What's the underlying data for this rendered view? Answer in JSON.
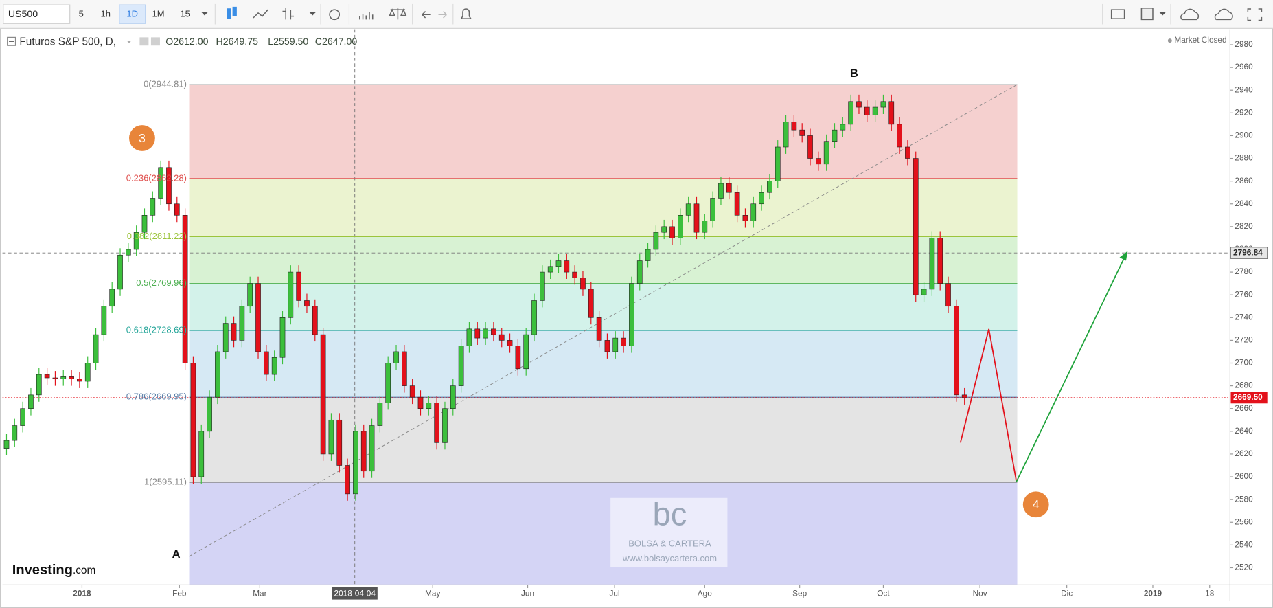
{
  "toolbar": {
    "symbol": "US500",
    "intervals": [
      "5",
      "1h",
      "1D",
      "1M",
      "15"
    ]
  },
  "chart_data": {
    "type": "candlestick",
    "title": "Futuros S&P 500, D,",
    "header_values": [
      "O2612.00",
      "H2649.75",
      "L2559.50",
      "C2647.00"
    ],
    "status": "Market Closed",
    "open": [
      2625,
      2632,
      2645,
      2660,
      2672,
      2690,
      2687,
      2686,
      2688,
      2686,
      2684,
      2700,
      2725,
      2750,
      2765,
      2795,
      2800,
      2815,
      2830,
      2845,
      2872,
      2840,
      2830,
      2700,
      2600,
      2640,
      2670,
      2710,
      2735,
      2720,
      2750,
      2770,
      2710,
      2690,
      2705,
      2740,
      2780,
      2755,
      2750,
      2725,
      2620,
      2650,
      2610,
      2585,
      2640,
      2605,
      2645,
      2665,
      2700,
      2710,
      2680,
      2670,
      2660,
      2665,
      2630,
      2660,
      2680,
      2715,
      2730,
      2722,
      2730,
      2725,
      2720,
      2715,
      2695,
      2725,
      2755,
      2780,
      2785,
      2790,
      2780,
      2775,
      2765,
      2740,
      2720,
      2710,
      2722,
      2715,
      2770,
      2790,
      2800,
      2815,
      2820,
      2810,
      2830,
      2840,
      2815,
      2825,
      2845,
      2858,
      2850,
      2830,
      2825,
      2840,
      2850,
      2860,
      2890,
      2912,
      2905,
      2900,
      2880,
      2875,
      2895,
      2905,
      2910,
      2930,
      2925,
      2918,
      2925,
      2930,
      2910,
      2890,
      2880,
      2760,
      2765,
      2810,
      2770,
      2750,
      2672
    ],
    "high": [
      2638,
      2651,
      2666,
      2678,
      2696,
      2696,
      2693,
      2694,
      2694,
      2692,
      2706,
      2731,
      2756,
      2771,
      2801,
      2806,
      2821,
      2836,
      2851,
      2878,
      2878,
      2846,
      2836,
      2706,
      2646,
      2676,
      2716,
      2741,
      2741,
      2756,
      2776,
      2776,
      2716,
      2711,
      2746,
      2786,
      2786,
      2761,
      2756,
      2731,
      2656,
      2656,
      2616,
      2646,
      2646,
      2651,
      2671,
      2706,
      2716,
      2716,
      2686,
      2676,
      2671,
      2671,
      2666,
      2686,
      2721,
      2736,
      2736,
      2736,
      2736,
      2731,
      2726,
      2721,
      2731,
      2761,
      2786,
      2791,
      2796,
      2796,
      2786,
      2781,
      2771,
      2746,
      2726,
      2728,
      2728,
      2776,
      2796,
      2806,
      2821,
      2826,
      2826,
      2836,
      2846,
      2846,
      2831,
      2851,
      2864,
      2864,
      2856,
      2836,
      2846,
      2856,
      2866,
      2896,
      2918,
      2918,
      2911,
      2906,
      2886,
      2901,
      2911,
      2916,
      2936,
      2936,
      2931,
      2931,
      2936,
      2936,
      2916,
      2896,
      2886,
      2771,
      2816,
      2816,
      2776,
      2756,
      2678
    ],
    "low": [
      2619,
      2626,
      2639,
      2654,
      2666,
      2681,
      2680,
      2680,
      2680,
      2678,
      2678,
      2694,
      2719,
      2744,
      2759,
      2789,
      2794,
      2809,
      2824,
      2839,
      2834,
      2824,
      2694,
      2594,
      2594,
      2634,
      2664,
      2704,
      2714,
      2714,
      2744,
      2704,
      2684,
      2684,
      2699,
      2734,
      2749,
      2744,
      2719,
      2614,
      2614,
      2604,
      2579,
      2579,
      2599,
      2599,
      2639,
      2659,
      2694,
      2674,
      2664,
      2654,
      2654,
      2624,
      2624,
      2654,
      2674,
      2709,
      2716,
      2716,
      2719,
      2714,
      2709,
      2689,
      2689,
      2719,
      2749,
      2774,
      2779,
      2774,
      2769,
      2759,
      2734,
      2714,
      2704,
      2704,
      2709,
      2709,
      2764,
      2784,
      2794,
      2809,
      2804,
      2804,
      2824,
      2809,
      2809,
      2819,
      2839,
      2844,
      2824,
      2819,
      2819,
      2834,
      2844,
      2854,
      2884,
      2899,
      2894,
      2874,
      2869,
      2869,
      2889,
      2899,
      2904,
      2919,
      2912,
      2912,
      2919,
      2904,
      2884,
      2874,
      2754,
      2754,
      2759,
      2764,
      2744,
      2666,
      2663.5
    ],
    "close": [
      2632,
      2645,
      2660,
      2672,
      2690,
      2687,
      2686,
      2688,
      2686,
      2684,
      2700,
      2725,
      2750,
      2765,
      2795,
      2800,
      2815,
      2830,
      2845,
      2872,
      2840,
      2830,
      2700,
      2600,
      2640,
      2670,
      2710,
      2735,
      2720,
      2750,
      2770,
      2710,
      2690,
      2705,
      2740,
      2780,
      2755,
      2750,
      2725,
      2620,
      2650,
      2610,
      2585,
      2640,
      2605,
      2645,
      2665,
      2700,
      2710,
      2680,
      2670,
      2660,
      2665,
      2630,
      2660,
      2680,
      2715,
      2730,
      2722,
      2730,
      2725,
      2720,
      2715,
      2695,
      2725,
      2755,
      2780,
      2785,
      2790,
      2780,
      2775,
      2765,
      2740,
      2720,
      2710,
      2722,
      2715,
      2770,
      2790,
      2800,
      2815,
      2820,
      2810,
      2830,
      2840,
      2815,
      2825,
      2845,
      2858,
      2850,
      2830,
      2825,
      2840,
      2850,
      2860,
      2890,
      2912,
      2905,
      2900,
      2880,
      2875,
      2895,
      2905,
      2910,
      2930,
      2925,
      2918,
      2925,
      2930,
      2910,
      2890,
      2880,
      2760,
      2765,
      2810,
      2770,
      2750,
      2672,
      2669.5
    ],
    "up_color": "#3cbf3c",
    "down_color": "#e3111b",
    "xlim": [
      -0.5,
      150.7
    ],
    "xticks": [
      {
        "value": 9.3,
        "label": "2018"
      },
      {
        "value": 21.3,
        "label": "Feb"
      },
      {
        "value": 31.2,
        "label": "Mar"
      },
      {
        "value": 52.5,
        "label": "May"
      },
      {
        "value": 64.2,
        "label": "Jun"
      },
      {
        "value": 74.9,
        "label": "Jul"
      },
      {
        "value": 86,
        "label": "Ago"
      },
      {
        "value": 97.7,
        "label": "Sep"
      },
      {
        "value": 108,
        "label": "Oct"
      },
      {
        "value": 119.9,
        "label": "Nov"
      },
      {
        "value": 130.6,
        "label": "Dic"
      },
      {
        "value": 141.2,
        "label": "2019"
      },
      {
        "value": 148.2,
        "label": "18"
      }
    ],
    "ylim": [
      2505,
      2990.7
    ],
    "yticks": [
      2520,
      2540,
      2560,
      2580,
      2600,
      2620,
      2640,
      2660,
      2680,
      2700,
      2720,
      2740,
      2760,
      2780,
      2800,
      2820,
      2840,
      2860,
      2880,
      2900,
      2920,
      2940,
      2960,
      2980
    ],
    "last_price": {
      "value": 2669.5,
      "label": "2669.50"
    },
    "crosshair": {
      "x": {
        "value": 42.9,
        "label": "2018-04-04"
      },
      "y": 2796.84
    },
    "fibonacci": {
      "levels": [
        {
          "value": 2944.81,
          "label": "0(2944.81)"
        },
        {
          "value": 2862.28,
          "label": "0.236(2862.28)"
        },
        {
          "value": 2811.22,
          "label": "0.382(2811.22)"
        },
        {
          "value": 2769.96,
          "label": "0.5(2769.96)"
        },
        {
          "value": 2728.69,
          "label": "0.618(2728.69)"
        },
        {
          "value": 2669.95,
          "label": "0.786(2669.95)"
        },
        {
          "value": 2595.11,
          "label": "1(2595.11)"
        }
      ],
      "line_colors": [
        "#8a8a8a",
        "#e0514f",
        "#9cc43c",
        "#4caf50",
        "#26a69a",
        "#5b7fa8",
        "#8a8a8a"
      ],
      "zone_colors": [
        "#f5d0cf",
        "#ebf3d0",
        "#d8f2d3",
        "#d3f2ea",
        "#d6e9f4",
        "#e4e4e4",
        "#d4d4f5"
      ]
    },
    "annotations": [
      "A",
      "B",
      "3",
      "4"
    ]
  },
  "watermark": {
    "logo": "bc",
    "name": "BOLSA & CARTERA",
    "url": "www.bolsaycartera.com"
  },
  "brand": {
    "name": "Investing",
    "suffix": ".com"
  }
}
